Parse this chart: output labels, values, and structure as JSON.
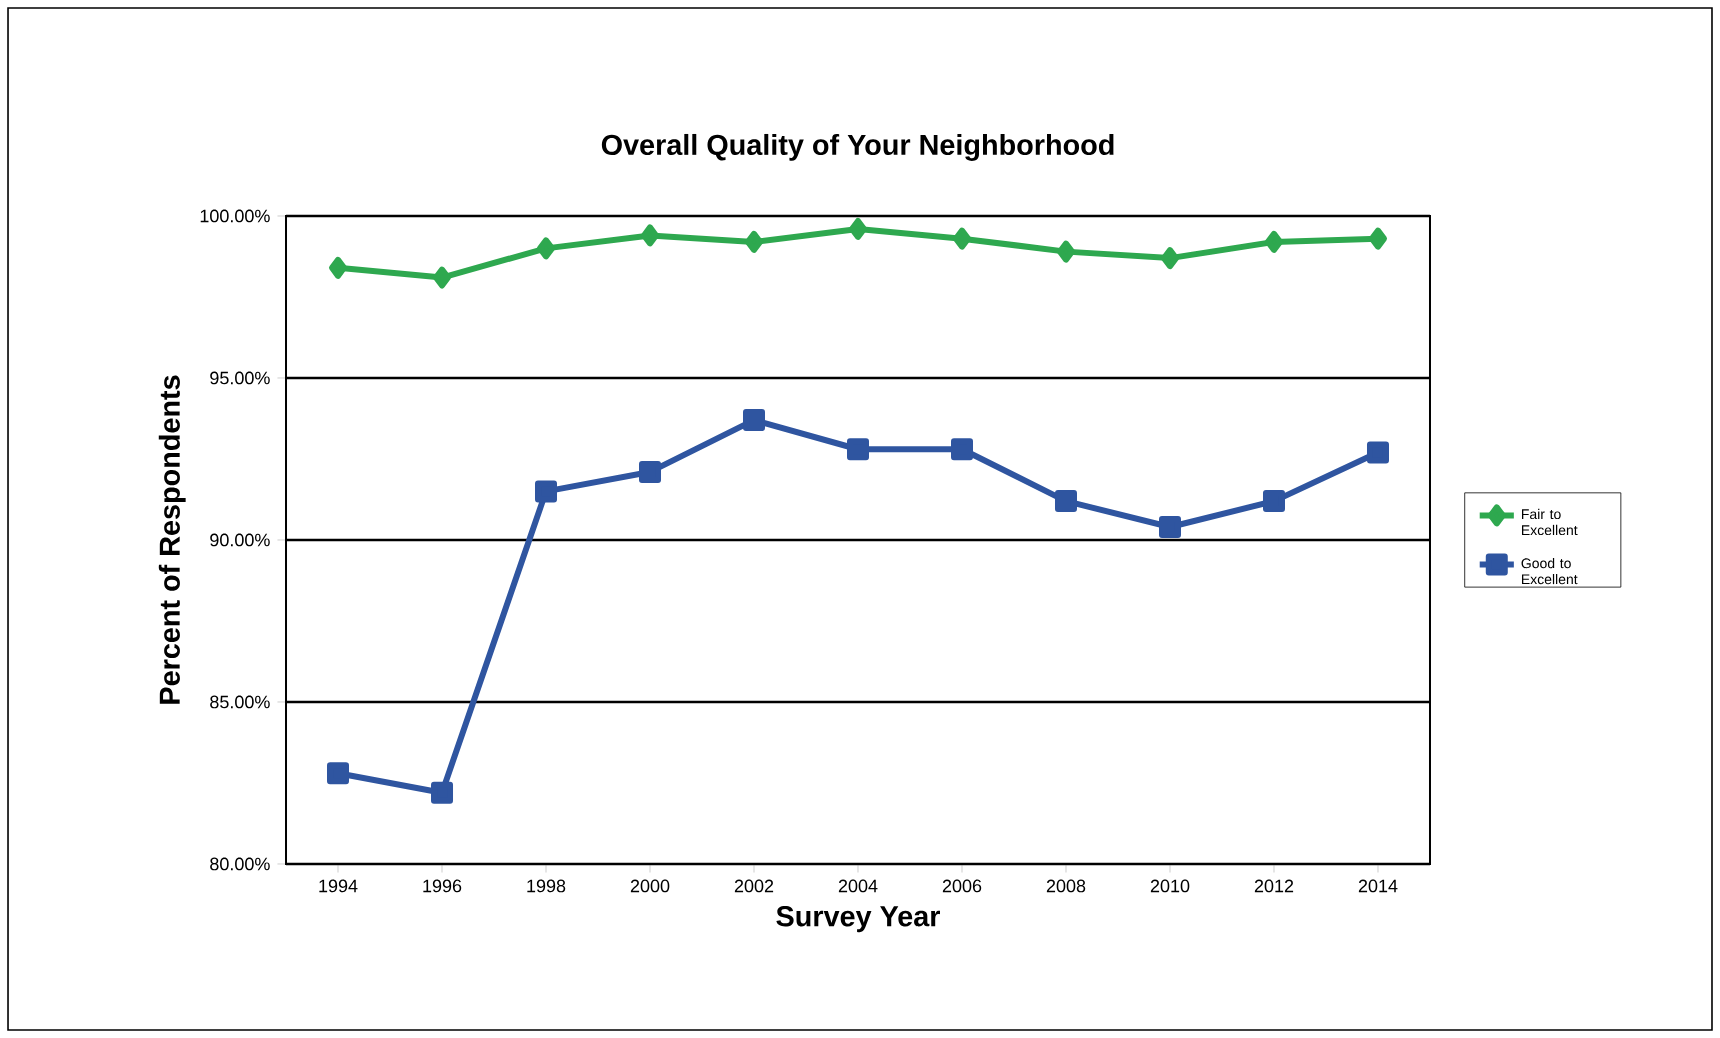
{
  "chart_data": {
    "type": "line",
    "title": "Overall Quality of Your Neighborhood",
    "xlabel": "Survey Year",
    "ylabel": "Percent of Respondents",
    "categories": [
      "1994",
      "1996",
      "1998",
      "2000",
      "2002",
      "2004",
      "2006",
      "2008",
      "2010",
      "2012",
      "2014"
    ],
    "series": [
      {
        "name": "Fair to Excellent",
        "color": "#2ea84f",
        "marker": "diamond",
        "values": [
          98.4,
          98.1,
          99.0,
          99.4,
          99.2,
          99.6,
          99.3,
          98.9,
          98.7,
          99.2,
          99.3
        ]
      },
      {
        "name": "Good to Excellent",
        "color": "#2f55a0",
        "marker": "square",
        "values": [
          82.8,
          82.2,
          91.5,
          92.1,
          93.7,
          92.8,
          92.8,
          91.2,
          90.4,
          91.2,
          92.7
        ]
      }
    ],
    "ylim": [
      80,
      100
    ],
    "yticks": [
      {
        "value": 80,
        "label": "80.00%"
      },
      {
        "value": 85,
        "label": "85.00%"
      },
      {
        "value": 90,
        "label": "90.00%"
      },
      {
        "value": 95,
        "label": "95.00%"
      },
      {
        "value": 100,
        "label": "100.00%"
      }
    ],
    "grid": "y",
    "legend": "right",
    "line_style": "solid"
  }
}
